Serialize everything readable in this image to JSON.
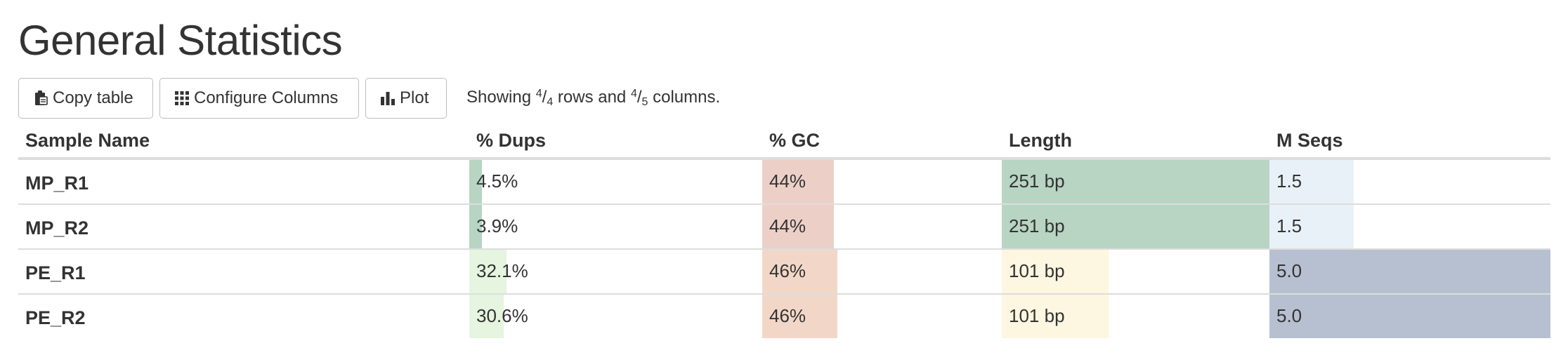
{
  "page": {
    "title": "General Statistics"
  },
  "toolbar": {
    "copy_label": "Copy table",
    "configure_label": "Configure Columns",
    "plot_label": "Plot",
    "showing_prefix": "Showing",
    "rows_shown": "4",
    "rows_total": "4",
    "rows_word": "rows and",
    "cols_shown": "4",
    "cols_total": "5",
    "cols_word": "columns."
  },
  "table": {
    "headers": {
      "sample": "Sample Name",
      "dups": "% Dups",
      "gc": "% GC",
      "length": "Length",
      "mseqs": "M Seqs"
    },
    "colors": {
      "dups": "#e5f5e0",
      "gc": "#f2d7c8",
      "length_high": "#b8d4c3",
      "length_low": "#fdf6e0",
      "mseqs_low": "#e9f1f8",
      "mseqs_high": "#b6c0d0",
      "dups_low": "#b8d4c3",
      "gc_low": "#ecd0c8"
    },
    "rows": [
      {
        "sample": "MP_R1",
        "dups": "4.5%",
        "dups_fraction": 0.02,
        "gc": "44%",
        "gc_fraction": 0.44,
        "length": "251 bp",
        "length_fraction": 1.0,
        "mseqs": "1.5",
        "mseqs_fraction": 0.3
      },
      {
        "sample": "MP_R2",
        "dups": "3.9%",
        "dups_fraction": 0.017,
        "gc": "44%",
        "gc_fraction": 0.44,
        "length": "251 bp",
        "length_fraction": 1.0,
        "mseqs": "1.5",
        "mseqs_fraction": 0.3
      },
      {
        "sample": "PE_R1",
        "dups": "32.1%",
        "dups_fraction": 0.14,
        "gc": "46%",
        "gc_fraction": 0.46,
        "length": "101 bp",
        "length_fraction": 0.4,
        "mseqs": "5.0",
        "mseqs_fraction": 1.0
      },
      {
        "sample": "PE_R2",
        "dups": "30.6%",
        "dups_fraction": 0.13,
        "gc": "46%",
        "gc_fraction": 0.46,
        "length": "101 bp",
        "length_fraction": 0.4,
        "mseqs": "5.0",
        "mseqs_fraction": 1.0
      }
    ]
  }
}
